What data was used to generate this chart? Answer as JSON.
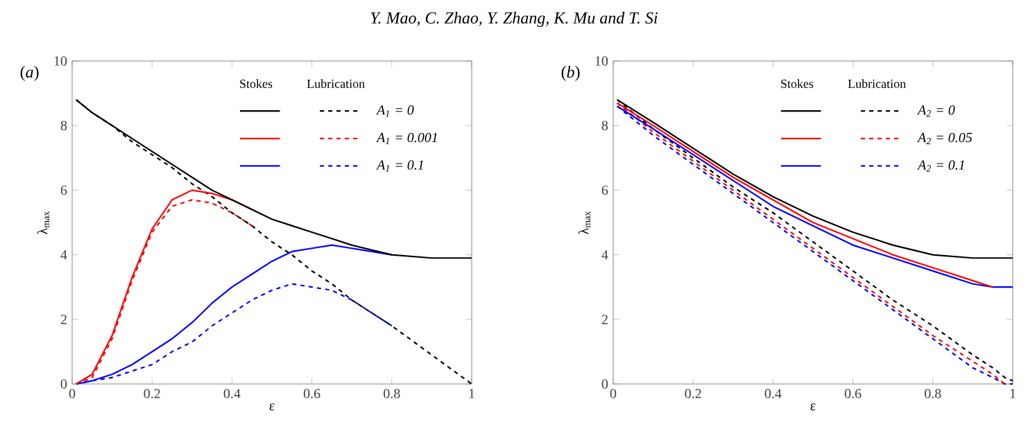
{
  "chart_data": [
    {
      "type": "line",
      "title": "(*a*)",
      "xlabel": "ε",
      "ylabel": "λ$_{max}$",
      "xlim": [
        0,
        1
      ],
      "ylim": [
        0,
        10
      ],
      "xticks": [
        0,
        0.2,
        0.4,
        0.6,
        0.8,
        1
      ],
      "yticks": [
        0,
        2,
        4,
        6,
        8,
        10
      ],
      "legend": "top right",
      "annotations": [
        "Y. Mao, C. Zhao, Y. Zhang, K. Mu and T. Si",
        "Stokes",
        "Lubrication"
      ],
      "x": [
        0.01,
        0.05,
        0.1,
        0.15,
        0.2,
        0.25,
        0.3,
        0.35,
        0.4,
        0.45,
        0.5,
        0.55,
        0.6,
        0.65,
        0.7,
        0.8,
        0.9,
        1
      ],
      "series": [
        {
          "name": "A$_{1}$ = 0",
          "color": "#000000",
          "line_style": "solid",
          "values": [
            8.8,
            8.4,
            8.0,
            7.6,
            7.2,
            6.8,
            6.4,
            6.0,
            5.7,
            5.4,
            5.1,
            4.9,
            4.7,
            4.5,
            4.3,
            4.0,
            3.9,
            3.9
          ]
        },
        {
          "name": "A$_{1}$ = 0.001",
          "color": "#ff0000",
          "line_style": "solid",
          "values": [
            0,
            0.3,
            1.5,
            3.3,
            4.8,
            5.7,
            6.0,
            5.9,
            5.7,
            5.4,
            null,
            null,
            null,
            null,
            null,
            null,
            null,
            null
          ]
        },
        {
          "name": "A$_{1}$ = 0.1",
          "color": "#0000ff",
          "line_style": "solid",
          "values": [
            0,
            0.1,
            0.3,
            0.6,
            1.0,
            1.4,
            1.9,
            2.5,
            3.0,
            3.4,
            3.8,
            4.1,
            4.2,
            4.3,
            4.2,
            4.0,
            null,
            null
          ]
        },
        {
          "color": "#000000",
          "line_style": "dashed",
          "values": [
            8.8,
            8.4,
            8.0,
            7.5,
            7.1,
            6.7,
            6.2,
            5.8,
            5.3,
            4.9,
            4.4,
            4.0,
            3.5,
            3.1,
            2.6,
            1.8,
            0.9,
            0
          ]
        },
        {
          "color": "#ff0000",
          "line_style": "dashed",
          "values": [
            0,
            0.2,
            1.4,
            3.2,
            4.7,
            5.5,
            5.7,
            5.6,
            5.3,
            4.9,
            null,
            null,
            null,
            null,
            null,
            null,
            null,
            null
          ]
        },
        {
          "color": "#0000ff",
          "line_style": "dashed",
          "values": [
            0,
            0.1,
            0.2,
            0.4,
            0.6,
            1.0,
            1.3,
            1.8,
            2.2,
            2.6,
            2.9,
            3.1,
            3.0,
            2.9,
            2.6,
            1.8,
            null,
            null
          ]
        }
      ]
    },
    {
      "type": "line",
      "title": "(*b*)",
      "xlabel": "ε",
      "ylabel": "λ$_{max}$",
      "xlim": [
        0,
        1
      ],
      "ylim": [
        0,
        10
      ],
      "xticks": [
        0,
        0.2,
        0.4,
        0.6,
        0.8,
        1
      ],
      "yticks": [
        0,
        2,
        4,
        6,
        8,
        10
      ],
      "legend": "top right",
      "annotations": [
        "Stokes",
        "Lubrication"
      ],
      "x": [
        0.01,
        0.1,
        0.2,
        0.3,
        0.4,
        0.5,
        0.6,
        0.7,
        0.8,
        0.9,
        0.95,
        0.98,
        1
      ],
      "series": [
        {
          "name": "A$_{2}$ = 0",
          "color": "#000000",
          "line_style": "solid",
          "values": [
            8.8,
            8.1,
            7.3,
            6.5,
            5.8,
            5.2,
            4.7,
            4.3,
            4.0,
            3.9,
            3.9,
            3.9,
            3.9
          ]
        },
        {
          "name": "A$_{2}$ = 0.05",
          "color": "#ff0000",
          "line_style": "solid",
          "values": [
            8.7,
            8.0,
            7.2,
            6.4,
            5.7,
            5.0,
            4.5,
            4.0,
            3.6,
            3.2,
            3.0,
            null,
            null
          ]
        },
        {
          "name": "A$_{2}$ = 0.1",
          "color": "#0000ff",
          "line_style": "solid",
          "values": [
            8.6,
            7.9,
            7.1,
            6.3,
            5.5,
            4.9,
            4.3,
            3.9,
            3.5,
            3.1,
            3.0,
            3.0,
            3.0
          ]
        },
        {
          "color": "#000000",
          "line_style": "dashed",
          "values": [
            8.8,
            7.9,
            7.0,
            6.1,
            5.3,
            4.4,
            3.5,
            2.6,
            1.8,
            0.9,
            0.5,
            0.2,
            0.1
          ]
        },
        {
          "color": "#ff0000",
          "line_style": "dashed",
          "values": [
            8.7,
            7.8,
            6.9,
            6.0,
            5.1,
            4.2,
            3.3,
            2.4,
            1.5,
            0.7,
            0.3,
            0,
            null
          ]
        },
        {
          "color": "#0000ff",
          "line_style": "dashed",
          "values": [
            8.6,
            7.7,
            6.8,
            5.9,
            5.0,
            4.1,
            3.2,
            2.3,
            1.4,
            0.5,
            0.2,
            0,
            0
          ]
        }
      ]
    }
  ]
}
